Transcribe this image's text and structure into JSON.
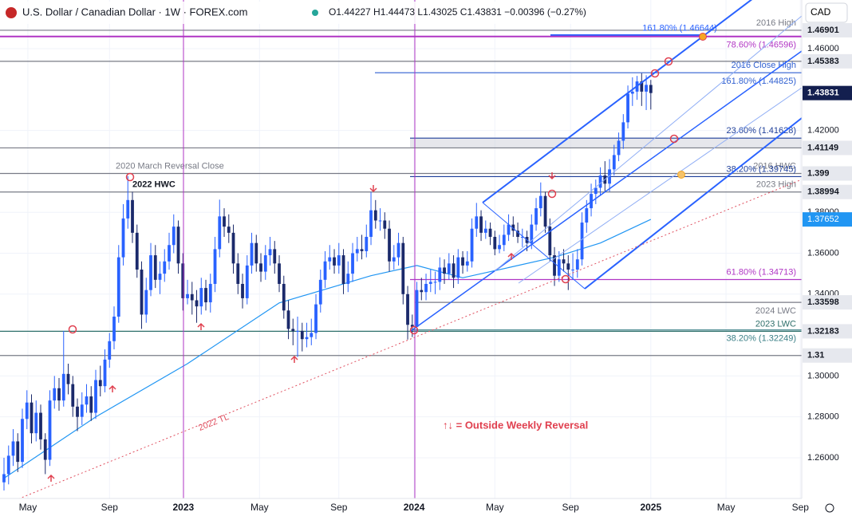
{
  "chart_data": {
    "type": "candlestick",
    "title": "U.S. Dollar / Canadian Dollar · 1W · FOREX.com",
    "legend_text": "O1.44227 H1.44473 L1.43025 C1.43831 −0.00396 (−0.27%)",
    "currency": "CAD",
    "annotation": "↑↓ = Outside Weekly Reversal",
    "trendline_label": "2022 TL",
    "up_color": "#2962ff",
    "down_color": "#1b2a6b",
    "ylim": [
      1.2401,
      1.4838
    ],
    "xlim": [
      -0.87,
      173.9
    ],
    "yticks": [
      {
        "value": 1.26,
        "label": "1.26000"
      },
      {
        "value": 1.28,
        "label": "1.28000"
      },
      {
        "value": 1.3,
        "label": "1.30000"
      },
      {
        "value": 1.34,
        "label": "1.34000"
      },
      {
        "value": 1.36,
        "label": "1.36000"
      },
      {
        "value": 1.38,
        "label": "1.38000"
      },
      {
        "value": 1.42,
        "label": "1.42000"
      },
      {
        "value": 1.46,
        "label": "1.46000"
      }
    ],
    "xticks": [
      {
        "value": 5.2,
        "label": "May"
      },
      {
        "value": 23,
        "label": "Sep"
      },
      {
        "value": 39.1,
        "label": "2023"
      },
      {
        "value": 55.7,
        "label": "May"
      },
      {
        "value": 73,
        "label": "Sep"
      },
      {
        "value": 89.4,
        "label": "2024"
      },
      {
        "value": 107,
        "label": "May"
      },
      {
        "value": 123.5,
        "label": "Sep"
      },
      {
        "value": 141,
        "label": "2025"
      },
      {
        "value": 157.4,
        "label": "May"
      },
      {
        "value": 173.6,
        "label": "Sep"
      }
    ],
    "candles": [
      [
        1.248,
        1.26,
        1.244,
        1.252
      ],
      [
        1.252,
        1.266,
        1.247,
        1.261
      ],
      [
        1.261,
        1.274,
        1.256,
        1.268
      ],
      [
        1.268,
        1.272,
        1.253,
        1.258
      ],
      [
        1.258,
        1.284,
        1.255,
        1.279
      ],
      [
        1.279,
        1.293,
        1.274,
        1.287
      ],
      [
        1.287,
        1.291,
        1.267,
        1.272
      ],
      [
        1.272,
        1.288,
        1.268,
        1.282
      ],
      [
        1.282,
        1.286,
        1.264,
        1.269
      ],
      [
        1.269,
        1.272,
        1.252,
        1.259
      ],
      [
        1.259,
        1.293,
        1.256,
        1.288
      ],
      [
        1.288,
        1.3,
        1.284,
        1.294
      ],
      [
        1.294,
        1.299,
        1.283,
        1.288
      ],
      [
        1.288,
        1.322,
        1.285,
        1.301
      ],
      [
        1.301,
        1.306,
        1.291,
        1.296
      ],
      [
        1.296,
        1.3,
        1.28,
        1.285
      ],
      [
        1.285,
        1.289,
        1.273,
        1.28
      ],
      [
        1.28,
        1.292,
        1.276,
        1.286
      ],
      [
        1.286,
        1.296,
        1.282,
        1.29
      ],
      [
        1.29,
        1.295,
        1.278,
        1.282
      ],
      [
        1.282,
        1.303,
        1.279,
        1.298
      ],
      [
        1.298,
        1.305,
        1.29,
        1.295
      ],
      [
        1.295,
        1.313,
        1.292,
        1.308
      ],
      [
        1.308,
        1.321,
        1.304,
        1.317
      ],
      [
        1.317,
        1.334,
        1.313,
        1.329
      ],
      [
        1.329,
        1.364,
        1.326,
        1.358
      ],
      [
        1.358,
        1.384,
        1.354,
        1.377
      ],
      [
        1.377,
        1.3977,
        1.372,
        1.386
      ],
      [
        1.386,
        1.39,
        1.365,
        1.37
      ],
      [
        1.37,
        1.374,
        1.348,
        1.352
      ],
      [
        1.352,
        1.356,
        1.323,
        1.33
      ],
      [
        1.33,
        1.348,
        1.326,
        1.342
      ],
      [
        1.342,
        1.365,
        1.339,
        1.359
      ],
      [
        1.359,
        1.364,
        1.343,
        1.347
      ],
      [
        1.347,
        1.356,
        1.34,
        1.35
      ],
      [
        1.35,
        1.362,
        1.346,
        1.356
      ],
      [
        1.356,
        1.37,
        1.352,
        1.364
      ],
      [
        1.364,
        1.379,
        1.36,
        1.373
      ],
      [
        1.373,
        1.376,
        1.35,
        1.355
      ],
      [
        1.355,
        1.36,
        1.332,
        1.338
      ],
      [
        1.338,
        1.347,
        1.335,
        1.34
      ],
      [
        1.34,
        1.346,
        1.33,
        1.337
      ],
      [
        1.337,
        1.342,
        1.326,
        1.334
      ],
      [
        1.334,
        1.348,
        1.33,
        1.343
      ],
      [
        1.343,
        1.347,
        1.332,
        1.336
      ],
      [
        1.336,
        1.35,
        1.331,
        1.345
      ],
      [
        1.345,
        1.368,
        1.341,
        1.362
      ],
      [
        1.362,
        1.3862,
        1.358,
        1.378
      ],
      [
        1.378,
        1.382,
        1.368,
        1.373
      ],
      [
        1.373,
        1.379,
        1.365,
        1.37
      ],
      [
        1.37,
        1.374,
        1.35,
        1.355
      ],
      [
        1.355,
        1.36,
        1.34,
        1.345
      ],
      [
        1.345,
        1.35,
        1.333,
        1.338
      ],
      [
        1.338,
        1.359,
        1.335,
        1.354
      ],
      [
        1.354,
        1.37,
        1.35,
        1.365
      ],
      [
        1.365,
        1.369,
        1.351,
        1.355
      ],
      [
        1.355,
        1.36,
        1.346,
        1.351
      ],
      [
        1.351,
        1.364,
        1.347,
        1.359
      ],
      [
        1.359,
        1.368,
        1.354,
        1.362
      ],
      [
        1.362,
        1.366,
        1.35,
        1.355
      ],
      [
        1.355,
        1.359,
        1.341,
        1.345
      ],
      [
        1.345,
        1.349,
        1.328,
        1.332
      ],
      [
        1.332,
        1.337,
        1.318,
        1.323
      ],
      [
        1.323,
        1.328,
        1.315,
        1.322
      ],
      [
        1.322,
        1.329,
        1.3093,
        1.322
      ],
      [
        1.322,
        1.326,
        1.312,
        1.318
      ],
      [
        1.318,
        1.326,
        1.314,
        1.319
      ],
      [
        1.319,
        1.328,
        1.315,
        1.321
      ],
      [
        1.321,
        1.34,
        1.318,
        1.335
      ],
      [
        1.335,
        1.352,
        1.331,
        1.347
      ],
      [
        1.347,
        1.361,
        1.343,
        1.356
      ],
      [
        1.356,
        1.364,
        1.352,
        1.358
      ],
      [
        1.358,
        1.362,
        1.35,
        1.354
      ],
      [
        1.354,
        1.365,
        1.35,
        1.359
      ],
      [
        1.359,
        1.362,
        1.34,
        1.345
      ],
      [
        1.345,
        1.356,
        1.341,
        1.35
      ],
      [
        1.35,
        1.365,
        1.346,
        1.36
      ],
      [
        1.36,
        1.368,
        1.356,
        1.362
      ],
      [
        1.362,
        1.369,
        1.357,
        1.361
      ],
      [
        1.361,
        1.374,
        1.358,
        1.368
      ],
      [
        1.368,
        1.3899,
        1.364,
        1.381
      ],
      [
        1.381,
        1.386,
        1.372,
        1.376
      ],
      [
        1.376,
        1.382,
        1.371,
        1.376
      ],
      [
        1.376,
        1.38,
        1.367,
        1.372
      ],
      [
        1.372,
        1.376,
        1.351,
        1.356
      ],
      [
        1.356,
        1.364,
        1.352,
        1.358
      ],
      [
        1.358,
        1.37,
        1.354,
        1.365
      ],
      [
        1.365,
        1.368,
        1.335,
        1.34
      ],
      [
        1.34,
        1.344,
        1.3178,
        1.325
      ],
      [
        1.325,
        1.33,
        1.319,
        1.324
      ],
      [
        1.324,
        1.346,
        1.321,
        1.342
      ],
      [
        1.342,
        1.348,
        1.337,
        1.341
      ],
      [
        1.341,
        1.35,
        1.337,
        1.345
      ],
      [
        1.345,
        1.352,
        1.341,
        1.346
      ],
      [
        1.346,
        1.351,
        1.34,
        1.346
      ],
      [
        1.346,
        1.358,
        1.342,
        1.353
      ],
      [
        1.353,
        1.357,
        1.345,
        1.35
      ],
      [
        1.35,
        1.36,
        1.347,
        1.355
      ],
      [
        1.355,
        1.359,
        1.343,
        1.348
      ],
      [
        1.348,
        1.362,
        1.345,
        1.358
      ],
      [
        1.358,
        1.361,
        1.35,
        1.354
      ],
      [
        1.354,
        1.361,
        1.351,
        1.356
      ],
      [
        1.356,
        1.377,
        1.353,
        1.372
      ],
      [
        1.372,
        1.3846,
        1.368,
        1.378
      ],
      [
        1.378,
        1.381,
        1.366,
        1.37
      ],
      [
        1.37,
        1.376,
        1.367,
        1.372
      ],
      [
        1.372,
        1.375,
        1.364,
        1.368
      ],
      [
        1.368,
        1.371,
        1.359,
        1.362
      ],
      [
        1.362,
        1.369,
        1.36,
        1.364
      ],
      [
        1.364,
        1.374,
        1.361,
        1.369
      ],
      [
        1.369,
        1.379,
        1.366,
        1.374
      ],
      [
        1.374,
        1.378,
        1.368,
        1.371
      ],
      [
        1.371,
        1.375,
        1.365,
        1.368
      ],
      [
        1.368,
        1.372,
        1.363,
        1.368
      ],
      [
        1.368,
        1.371,
        1.361,
        1.365
      ],
      [
        1.365,
        1.379,
        1.362,
        1.374
      ],
      [
        1.374,
        1.387,
        1.371,
        1.382
      ],
      [
        1.382,
        1.3946,
        1.378,
        1.388
      ],
      [
        1.388,
        1.39,
        1.37,
        1.373
      ],
      [
        1.373,
        1.377,
        1.356,
        1.359
      ],
      [
        1.359,
        1.363,
        1.344,
        1.349
      ],
      [
        1.349,
        1.361,
        1.346,
        1.357
      ],
      [
        1.357,
        1.362,
        1.351,
        1.355
      ],
      [
        1.355,
        1.359,
        1.342,
        1.352
      ],
      [
        1.352,
        1.36,
        1.347,
        1.352
      ],
      [
        1.352,
        1.362,
        1.348,
        1.357
      ],
      [
        1.357,
        1.38,
        1.354,
        1.375
      ],
      [
        1.375,
        1.386,
        1.37,
        1.382
      ],
      [
        1.382,
        1.394,
        1.378,
        1.389
      ],
      [
        1.389,
        1.396,
        1.384,
        1.392
      ],
      [
        1.392,
        1.402,
        1.388,
        1.398
      ],
      [
        1.398,
        1.405,
        1.39,
        1.394
      ],
      [
        1.394,
        1.406,
        1.39,
        1.401
      ],
      [
        1.401,
        1.413,
        1.398,
        1.408
      ],
      [
        1.408,
        1.419,
        1.405,
        1.415
      ],
      [
        1.415,
        1.428,
        1.411,
        1.424
      ],
      [
        1.424,
        1.442,
        1.421,
        1.438
      ],
      [
        1.438,
        1.446,
        1.432,
        1.439
      ],
      [
        1.439,
        1.4467,
        1.435,
        1.444
      ],
      [
        1.444,
        1.448,
        1.432,
        1.439
      ],
      [
        1.439,
        1.447,
        1.43,
        1.4423
      ],
      [
        1.44227,
        1.44473,
        1.43025,
        1.43831
      ]
    ],
    "ma": {
      "color": "#2196f3",
      "x": [
        0,
        20,
        40,
        60,
        80,
        90,
        100,
        110,
        120,
        130,
        141
      ],
      "values": [
        1.25,
        1.28,
        1.306,
        1.3357,
        1.349,
        1.354,
        1.348,
        1.353,
        1.358,
        1.365,
        1.37652
      ]
    },
    "levels": [
      {
        "value": 1.46901,
        "color": "#787b86",
        "tag": true,
        "label": "2016 High"
      },
      {
        "value": 1.46644,
        "color": "#2962ff",
        "label": "161.80% (1.46644)"
      },
      {
        "value": 1.46596,
        "color": "#b035c4",
        "label": "78.60% (1.46596)"
      },
      {
        "value": 1.45383,
        "color": "#787b86",
        "tag": true
      },
      {
        "value": 1.44825,
        "color": "#2f5fd0",
        "label": "2016 Close High",
        "note": "161.80% (1.44825)"
      },
      {
        "value": 1.41628,
        "color": "#1e3f9a",
        "label": "23.60% (1.41628)"
      },
      {
        "value": 1.41149,
        "color": "#787b86",
        "tag": true
      },
      {
        "value": 1.399,
        "color": "#787b86",
        "tag": true,
        "label": "2016 HWC",
        "note": "2020 March Reversal Close"
      },
      {
        "value": 1.39745,
        "color": "#1e3f9a",
        "label": "38.20% (1.39745)"
      },
      {
        "value": 1.38994,
        "color": "#787b86",
        "tag": true,
        "label": "2023 High",
        "note": "2022 HWC"
      },
      {
        "value": 1.34713,
        "color": "#b035c4",
        "label": "61.80% (1.34713)"
      },
      {
        "value": 1.33598,
        "color": "#787b86",
        "tag": true,
        "label": "2024 LWC"
      },
      {
        "value": 1.32183,
        "color": "#2e6f6a",
        "tag": true,
        "label": "2023 LWC"
      },
      {
        "value": 1.32249,
        "color": "#3a7f86",
        "label": "38.20% (1.32249)"
      },
      {
        "value": 1.31,
        "color": "#787b86",
        "tag": true
      }
    ]
  }
}
